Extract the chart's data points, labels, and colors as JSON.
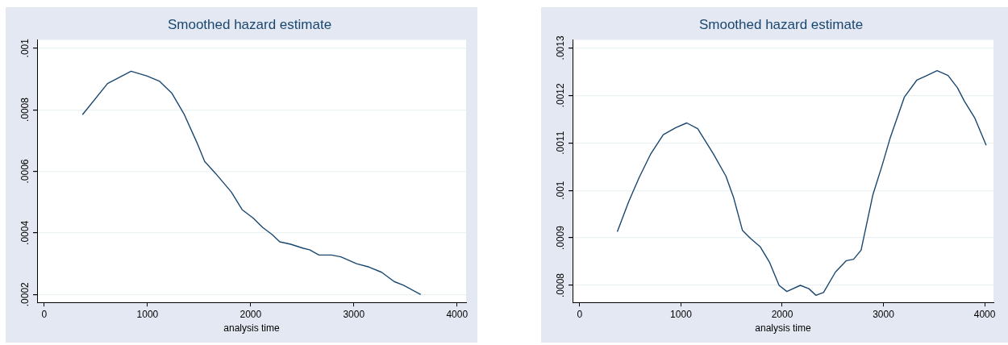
{
  "chart_data": [
    {
      "type": "line",
      "title": "Smoothed hazard estimate",
      "xlabel": "analysis time",
      "xlim": [
        -70,
        4088
      ],
      "xticks": [
        0,
        1000,
        2000,
        3000,
        4000
      ],
      "ylim": [
        0.000174,
        0.001027
      ],
      "yticks": [
        {
          "value": 0.0002,
          "label": ".0002"
        },
        {
          "value": 0.0004,
          "label": ".0004"
        },
        {
          "value": 0.0006,
          "label": ".0006"
        },
        {
          "value": 0.0008,
          "label": ".0008"
        },
        {
          "value": 0.001,
          "label": ".001"
        }
      ],
      "grid": "y",
      "legend": false,
      "series": [
        {
          "color": "#1a476f",
          "x": [
            370,
            613,
            841,
            992,
            1114,
            1235,
            1357,
            1478,
            1554,
            1660,
            1812,
            1918,
            2024,
            2115,
            2206,
            2282,
            2388,
            2510,
            2571,
            2662,
            2783,
            2874,
            3026,
            3147,
            3269,
            3390,
            3481,
            3648
          ],
          "values": [
            0.000784,
            0.000885,
            0.000925,
            0.00091,
            0.000893,
            0.000854,
            0.000784,
            0.000694,
            0.000632,
            0.000593,
            0.000533,
            0.000475,
            0.000448,
            0.000418,
            0.000395,
            0.000371,
            0.000363,
            0.00035,
            0.000345,
            0.000328,
            0.000328,
            0.000322,
            0.0003,
            0.000289,
            0.000272,
            0.000242,
            0.00023,
            0.0002
          ]
        }
      ]
    },
    {
      "type": "line",
      "title": "Smoothed hazard estimate",
      "xlabel": "analysis time",
      "xlim": [
        -71,
        4087
      ],
      "xticks": [
        0,
        1000,
        2000,
        3000,
        4000
      ],
      "ylim": [
        0.000764,
        0.001317
      ],
      "yticks": [
        {
          "value": 0.0008,
          "label": ".0008"
        },
        {
          "value": 0.0009,
          "label": ".0009"
        },
        {
          "value": 0.001,
          "label": ".001"
        },
        {
          "value": 0.0011,
          "label": ".0011"
        },
        {
          "value": 0.0012,
          "label": ".0012"
        },
        {
          "value": 0.0013,
          "label": ".0013"
        }
      ],
      "grid": "y",
      "legend": false,
      "series": [
        {
          "color": "#1a476f",
          "x": [
            371,
            485,
            587,
            702,
            825,
            949,
            1057,
            1165,
            1320,
            1444,
            1521,
            1607,
            1691,
            1784,
            1876,
            1969,
            2046,
            2179,
            2263,
            2334,
            2408,
            2526,
            2634,
            2705,
            2779,
            2896,
            2989,
            3066,
            3206,
            3329,
            3422,
            3530,
            3638,
            3731,
            3799,
            3901,
            4015
          ],
          "values": [
            0.000913,
            0.000977,
            0.001027,
            0.001077,
            0.001117,
            0.001132,
            0.001142,
            0.00113,
            0.001077,
            0.00103,
            0.000984,
            0.000916,
            0.000898,
            0.000881,
            0.000848,
            0.0008,
            0.000787,
            0.0008,
            0.000793,
            0.000779,
            0.000785,
            0.000828,
            0.000852,
            0.000855,
            0.000874,
            0.000991,
            0.001054,
            0.00111,
            0.001196,
            0.001232,
            0.001241,
            0.001252,
            0.001242,
            0.001216,
            0.001188,
            0.001153,
            0.001095
          ]
        }
      ]
    }
  ]
}
